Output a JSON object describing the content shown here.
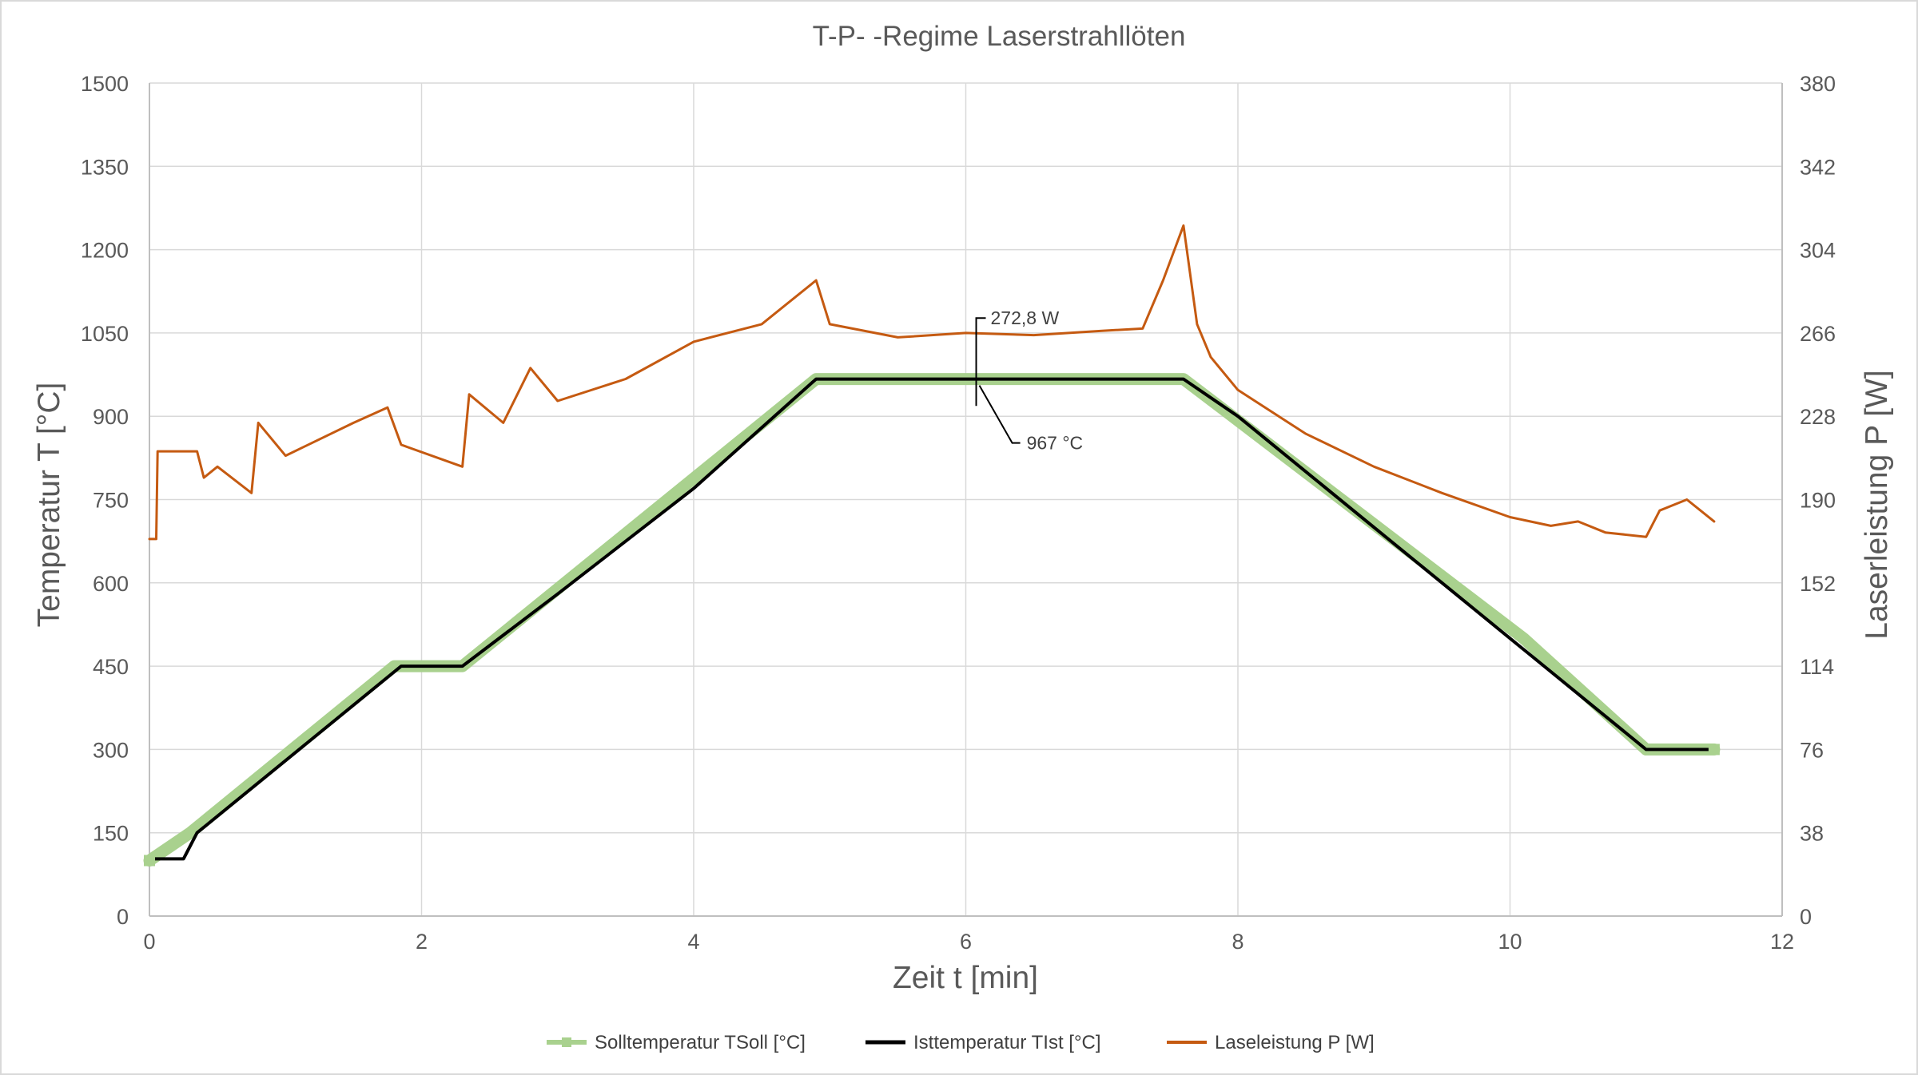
{
  "chart_data": {
    "type": "line",
    "title": "T-P- -Regime Laserstrahllöten",
    "xlabel": "Zeit t [min]",
    "ylabel": "Temperatur T [°C]",
    "y2label": "Laserleistung P [W]",
    "xlim": [
      0,
      12
    ],
    "ylim": [
      0,
      1500
    ],
    "y2lim": [
      0,
      380
    ],
    "xticks": [
      "0",
      "2",
      "4",
      "6",
      "8",
      "10",
      "12"
    ],
    "yticks": [
      "0",
      "150",
      "300",
      "450",
      "600",
      "750",
      "900",
      "1050",
      "1200",
      "1350",
      "1500"
    ],
    "y2ticks": [
      "0",
      "38",
      "76",
      "114",
      "152",
      "190",
      "228",
      "266",
      "304",
      "342",
      "380"
    ],
    "grid": true,
    "legend_position": "bottom",
    "series": [
      {
        "name": "Solltemperatur TSoll [°C]",
        "axis": "left",
        "color": "#a9d18e",
        "x": [
          0,
          0.3,
          1.8,
          2.3,
          4.9,
          7.6,
          10.1,
          11.0,
          11.5
        ],
        "y": [
          100,
          150,
          450,
          450,
          967,
          967,
          500,
          300,
          300
        ]
      },
      {
        "name": "Isttemperatur TIst [°C]",
        "axis": "left",
        "color": "#000000",
        "x": [
          0,
          0.25,
          0.35,
          1.0,
          1.85,
          2.3,
          3.0,
          4.0,
          4.9,
          6.0,
          7.0,
          7.6,
          8.0,
          9.0,
          10.0,
          11.0,
          11.5
        ],
        "y": [
          103,
          103,
          150,
          280,
          450,
          450,
          580,
          770,
          967,
          967,
          967,
          967,
          900,
          700,
          500,
          300,
          300
        ]
      },
      {
        "name": "Laseleistung P [W]",
        "axis": "right",
        "color": "#c55a11",
        "x": [
          0,
          0.05,
          0.06,
          0.35,
          0.4,
          0.5,
          0.75,
          0.8,
          1.0,
          1.5,
          1.75,
          1.85,
          2.3,
          2.35,
          2.6,
          2.8,
          3.0,
          3.5,
          4.0,
          4.5,
          4.9,
          5.0,
          5.5,
          6.0,
          6.5,
          7.0,
          7.3,
          7.45,
          7.6,
          7.7,
          7.8,
          8.0,
          8.5,
          9.0,
          9.5,
          10.0,
          10.3,
          10.5,
          10.7,
          11.0,
          11.1,
          11.3,
          11.5
        ],
        "y": [
          172,
          172,
          212,
          212,
          200,
          205,
          193,
          225,
          210,
          225,
          232,
          215,
          205,
          238,
          225,
          250,
          235,
          245,
          262,
          270,
          290,
          270,
          264,
          266,
          265,
          267,
          268,
          290,
          315,
          270,
          255,
          240,
          220,
          205,
          193,
          182,
          178,
          180,
          175,
          173,
          185,
          190,
          180
        ]
      }
    ],
    "annotations": [
      {
        "text": "272,8 W",
        "x": 6.1,
        "y_axis": "right",
        "y": 272.8
      },
      {
        "text": "967 °C",
        "x": 6.4,
        "y_axis": "left",
        "y": 967
      }
    ]
  }
}
